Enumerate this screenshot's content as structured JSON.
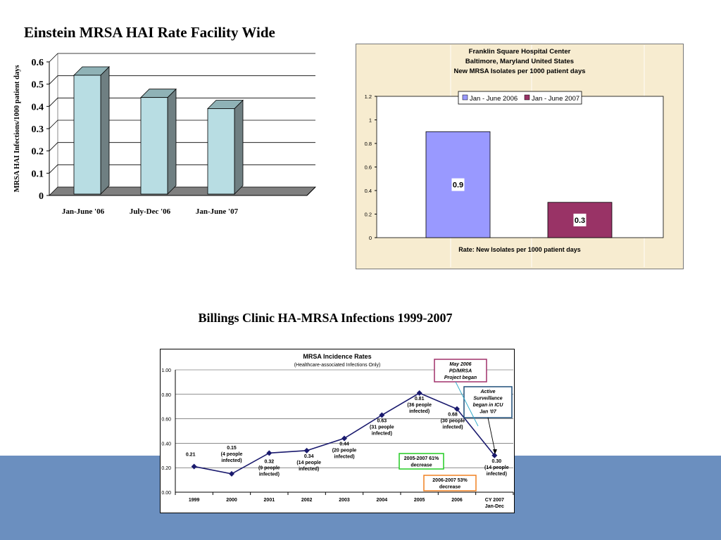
{
  "slide": {
    "title_einstein": "Einstein MRSA HAI Rate Facility Wide",
    "title_billings": "Billings Clinic HA-MRSA Infections 1999-2007"
  },
  "colors": {
    "bottom_band": "#6b8fbf",
    "einstein_bar": "#b8dde3",
    "fsh_2006": "#9999ff",
    "fsh_2007": "#993366",
    "billings_line": "#1a1a6e"
  },
  "chart_data": [
    {
      "type": "bar",
      "ylabel": "MRSA HAI Infections/1000 patient days",
      "categories": [
        "Jan-June '06",
        "July-Dec '06",
        "Jan-June '07"
      ],
      "values": [
        0.54,
        0.44,
        0.39
      ],
      "ylim": [
        0,
        0.6
      ],
      "yticks": [
        "0",
        "0.1",
        "0.2",
        "0.3",
        "0.4",
        "0.5",
        "0.6"
      ],
      "grid": true,
      "style": "3d"
    },
    {
      "type": "bar",
      "title_lines": [
        "Franklin Square Hospital Center",
        "Baltimore, Maryland  United States",
        "New MRSA Isolates per 1000 patient days"
      ],
      "xlabel": "Rate: New Isolates per 1000 patient days",
      "series": [
        {
          "name": "Jan - June 2006",
          "values": [
            0.9
          ],
          "label": "0.9"
        },
        {
          "name": "Jan - June 2007",
          "values": [
            0.3
          ],
          "label": "0.3"
        }
      ],
      "ylim": [
        0,
        1.2
      ],
      "yticks": [
        "0",
        "0.2",
        "0.4",
        "0.6",
        "0.8",
        "1",
        "1.2"
      ],
      "legend": "top"
    },
    {
      "type": "line",
      "title": "MRSA Incidence Rates",
      "subtitle": "(Healthcare-associated Infections Only)",
      "categories": [
        "1999",
        "2000",
        "2001",
        "2002",
        "2003",
        "2004",
        "2005",
        "2006",
        "CY 2007"
      ],
      "category_sub": [
        "",
        "",
        "",
        "",
        "",
        "",
        "",
        "",
        "Jan-Dec"
      ],
      "values": [
        0.21,
        0.15,
        0.32,
        0.34,
        0.44,
        0.63,
        0.81,
        0.68,
        0.3
      ],
      "point_labels": [
        [
          "0.21"
        ],
        [
          "0.15",
          "(4 people",
          "infected)"
        ],
        [
          "0.32",
          "(9 people",
          "infected)"
        ],
        [
          "0.34",
          "(14 people",
          "infected)"
        ],
        [
          "0.44",
          "(20 people",
          "infected)"
        ],
        [
          "0.63",
          "(31 people",
          "infected)"
        ],
        [
          "0.81",
          "(36 people",
          "infected)"
        ],
        [
          "0.68",
          "(30 people",
          "infected)"
        ],
        [
          "0.30",
          "(14 people",
          "infected)"
        ]
      ],
      "ylim": [
        0,
        1.0
      ],
      "yticks": [
        "0.00",
        "0.20",
        "0.40",
        "0.60",
        "0.80",
        "1.00"
      ],
      "annotations": [
        {
          "lines": [
            "May 2006",
            "PD/MRSA",
            "Project began"
          ],
          "color": "#a0306a"
        },
        {
          "lines": [
            "Active",
            "Surveillance",
            "began in ICU",
            "Jan '07"
          ],
          "color": "#1f4e79"
        },
        {
          "lines": [
            "2005-2007 61%",
            "decrease"
          ],
          "color": "#22cc22"
        },
        {
          "lines": [
            "2006-2007 53%",
            "decrease"
          ],
          "color": "#f08020"
        }
      ]
    }
  ]
}
